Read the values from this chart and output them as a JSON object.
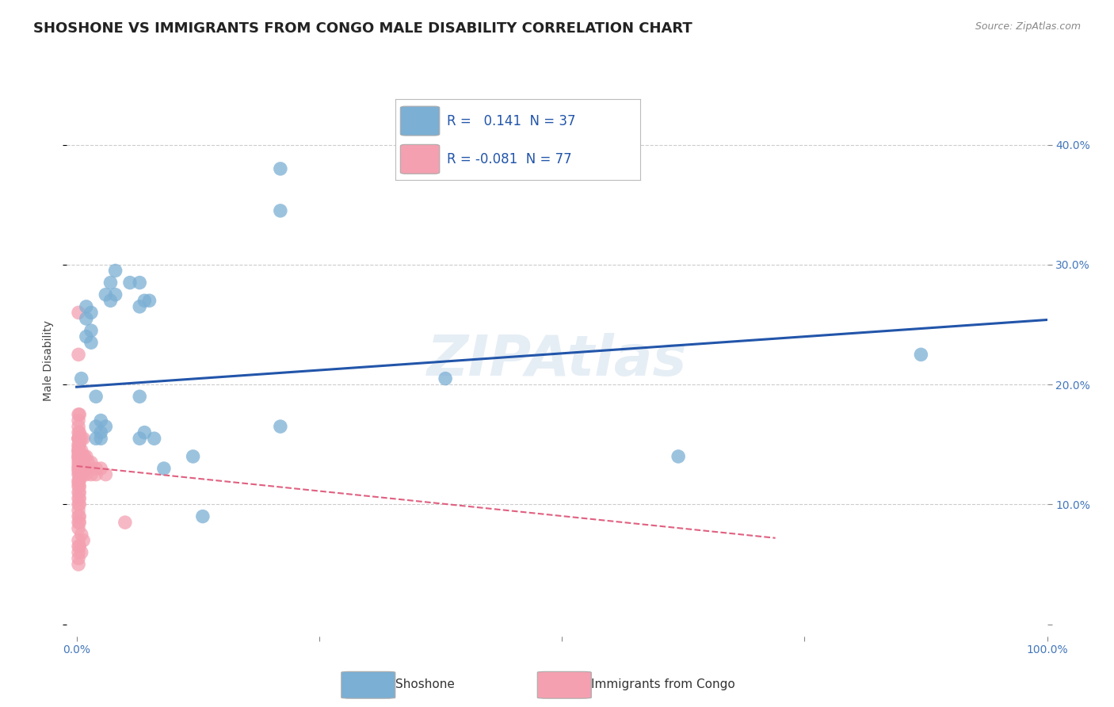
{
  "title": "SHOSHONE VS IMMIGRANTS FROM CONGO MALE DISABILITY CORRELATION CHART",
  "source": "Source: ZipAtlas.com",
  "ylabel": "Male Disability",
  "watermark": "ZIPAtlas",
  "shoshone_R": 0.141,
  "shoshone_N": 37,
  "congo_R": -0.081,
  "congo_N": 77,
  "shoshone_color": "#7bafd4",
  "congo_color": "#f4a0b0",
  "shoshone_line_color": "#2255aa",
  "congo_line_color": "#e06080",
  "background_color": "#ffffff",
  "grid_color": "#cccccc",
  "xlim": [
    -0.01,
    1.0
  ],
  "ylim": [
    -0.01,
    0.45
  ],
  "xticks": [
    0.0,
    0.25,
    0.5,
    0.75,
    1.0
  ],
  "xtick_labels": [
    "0.0%",
    "",
    "",
    "",
    "100.0%"
  ],
  "yticks": [
    0.0,
    0.1,
    0.2,
    0.3,
    0.4
  ],
  "ytick_labels": [
    "",
    "10.0%",
    "20.0%",
    "30.0%",
    "40.0%"
  ],
  "shoshone_points": [
    [
      0.005,
      0.205
    ],
    [
      0.01,
      0.265
    ],
    [
      0.01,
      0.255
    ],
    [
      0.01,
      0.24
    ],
    [
      0.015,
      0.26
    ],
    [
      0.015,
      0.245
    ],
    [
      0.015,
      0.235
    ],
    [
      0.02,
      0.19
    ],
    [
      0.02,
      0.165
    ],
    [
      0.02,
      0.155
    ],
    [
      0.025,
      0.155
    ],
    [
      0.025,
      0.17
    ],
    [
      0.025,
      0.16
    ],
    [
      0.03,
      0.165
    ],
    [
      0.03,
      0.275
    ],
    [
      0.035,
      0.285
    ],
    [
      0.035,
      0.27
    ],
    [
      0.04,
      0.295
    ],
    [
      0.04,
      0.275
    ],
    [
      0.055,
      0.285
    ],
    [
      0.065,
      0.285
    ],
    [
      0.065,
      0.19
    ],
    [
      0.065,
      0.265
    ],
    [
      0.07,
      0.27
    ],
    [
      0.075,
      0.27
    ],
    [
      0.065,
      0.155
    ],
    [
      0.07,
      0.16
    ],
    [
      0.08,
      0.155
    ],
    [
      0.09,
      0.13
    ],
    [
      0.12,
      0.14
    ],
    [
      0.13,
      0.09
    ],
    [
      0.21,
      0.165
    ],
    [
      0.21,
      0.38
    ],
    [
      0.21,
      0.345
    ],
    [
      0.38,
      0.205
    ],
    [
      0.62,
      0.14
    ],
    [
      0.87,
      0.225
    ]
  ],
  "congo_points": [
    [
      0.002,
      0.26
    ],
    [
      0.002,
      0.225
    ],
    [
      0.002,
      0.175
    ],
    [
      0.002,
      0.17
    ],
    [
      0.002,
      0.165
    ],
    [
      0.002,
      0.16
    ],
    [
      0.002,
      0.155
    ],
    [
      0.002,
      0.155
    ],
    [
      0.002,
      0.155
    ],
    [
      0.002,
      0.15
    ],
    [
      0.002,
      0.148
    ],
    [
      0.002,
      0.145
    ],
    [
      0.002,
      0.145
    ],
    [
      0.002,
      0.143
    ],
    [
      0.002,
      0.14
    ],
    [
      0.002,
      0.14
    ],
    [
      0.002,
      0.138
    ],
    [
      0.002,
      0.135
    ],
    [
      0.002,
      0.132
    ],
    [
      0.002,
      0.13
    ],
    [
      0.002,
      0.128
    ],
    [
      0.002,
      0.125
    ],
    [
      0.002,
      0.12
    ],
    [
      0.002,
      0.118
    ],
    [
      0.002,
      0.115
    ],
    [
      0.002,
      0.11
    ],
    [
      0.002,
      0.105
    ],
    [
      0.002,
      0.1
    ],
    [
      0.002,
      0.095
    ],
    [
      0.002,
      0.09
    ],
    [
      0.002,
      0.085
    ],
    [
      0.002,
      0.08
    ],
    [
      0.002,
      0.07
    ],
    [
      0.002,
      0.065
    ],
    [
      0.002,
      0.06
    ],
    [
      0.002,
      0.055
    ],
    [
      0.002,
      0.05
    ],
    [
      0.003,
      0.175
    ],
    [
      0.003,
      0.16
    ],
    [
      0.003,
      0.155
    ],
    [
      0.003,
      0.15
    ],
    [
      0.003,
      0.145
    ],
    [
      0.003,
      0.14
    ],
    [
      0.003,
      0.135
    ],
    [
      0.003,
      0.13
    ],
    [
      0.003,
      0.125
    ],
    [
      0.003,
      0.12
    ],
    [
      0.003,
      0.115
    ],
    [
      0.003,
      0.11
    ],
    [
      0.003,
      0.105
    ],
    [
      0.003,
      0.1
    ],
    [
      0.003,
      0.09
    ],
    [
      0.003,
      0.085
    ],
    [
      0.003,
      0.065
    ],
    [
      0.005,
      0.155
    ],
    [
      0.005,
      0.145
    ],
    [
      0.005,
      0.135
    ],
    [
      0.005,
      0.125
    ],
    [
      0.005,
      0.075
    ],
    [
      0.005,
      0.06
    ],
    [
      0.007,
      0.155
    ],
    [
      0.007,
      0.14
    ],
    [
      0.007,
      0.13
    ],
    [
      0.007,
      0.125
    ],
    [
      0.007,
      0.07
    ],
    [
      0.008,
      0.14
    ],
    [
      0.01,
      0.14
    ],
    [
      0.01,
      0.13
    ],
    [
      0.01,
      0.125
    ],
    [
      0.012,
      0.135
    ],
    [
      0.015,
      0.135
    ],
    [
      0.015,
      0.125
    ],
    [
      0.02,
      0.13
    ],
    [
      0.02,
      0.125
    ],
    [
      0.025,
      0.13
    ],
    [
      0.03,
      0.125
    ],
    [
      0.05,
      0.085
    ]
  ],
  "shoshone_trend_x": [
    0.0,
    1.0
  ],
  "shoshone_trend_y": [
    0.198,
    0.254
  ],
  "congo_trend_x": [
    0.0,
    0.72
  ],
  "congo_trend_y": [
    0.132,
    0.072
  ],
  "title_fontsize": 13,
  "axis_label_fontsize": 10,
  "tick_fontsize": 10,
  "watermark_fontsize": 52,
  "watermark_color": "#c8daea",
  "watermark_alpha": 0.45
}
